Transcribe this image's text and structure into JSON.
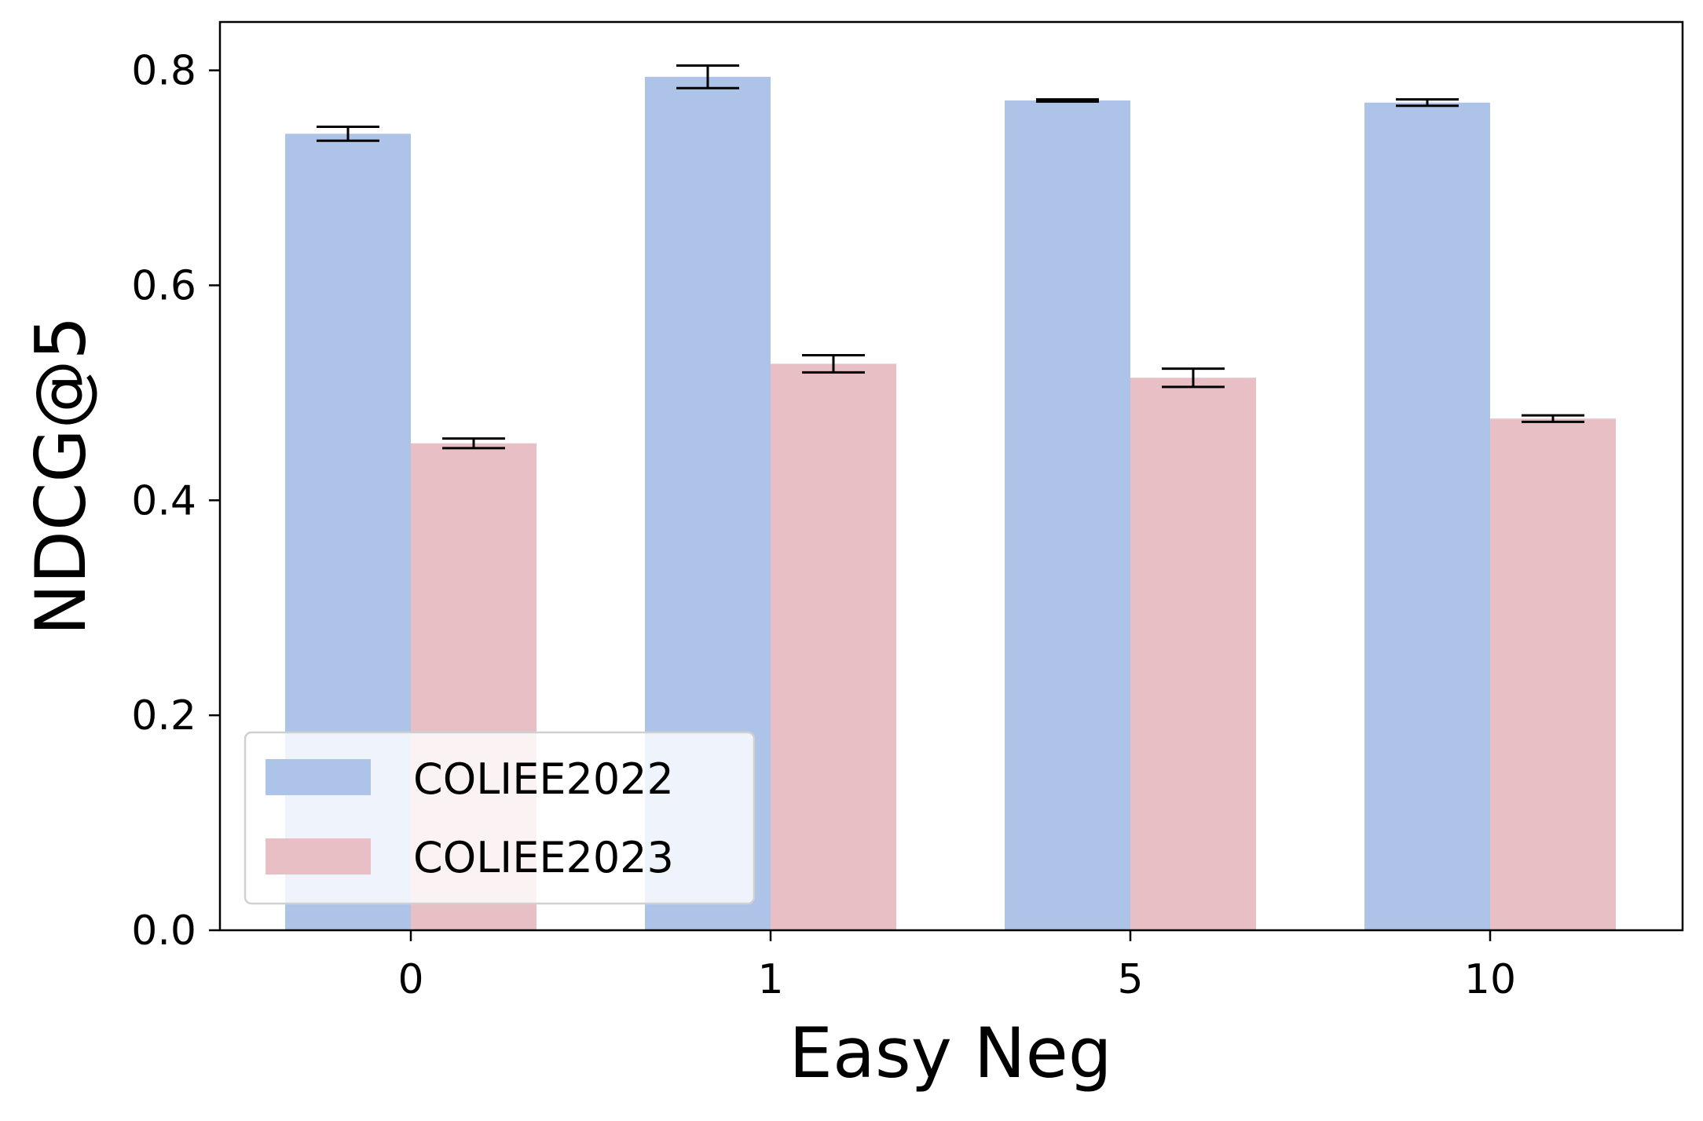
{
  "chart_data": {
    "type": "bar",
    "xlabel": "Easy Neg",
    "ylabel": "NDCG@5",
    "categories": [
      "0",
      "1",
      "5",
      "10"
    ],
    "ylim": [
      0,
      0.845
    ],
    "yticks": [
      "0.0",
      "0.2",
      "0.4",
      "0.6",
      "0.8"
    ],
    "series": [
      {
        "name": "COLIEE2022",
        "color": "#aec3e8",
        "values": [
          0.741,
          0.794,
          0.772,
          0.77
        ],
        "errors": [
          0.0065,
          0.0105,
          0.001,
          0.003
        ]
      },
      {
        "name": "COLIEE2023",
        "color": "#e8bfc4",
        "values": [
          0.453,
          0.527,
          0.514,
          0.476
        ],
        "errors": [
          0.0045,
          0.008,
          0.0085,
          0.003
        ]
      }
    ],
    "legend": "lower-left",
    "grid": false
  }
}
